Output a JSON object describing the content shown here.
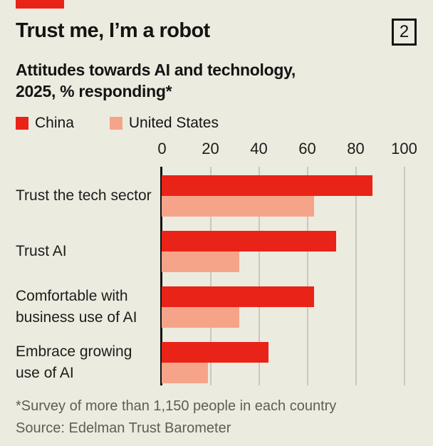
{
  "colors": {
    "background": "#ecebe0",
    "china_red": "#ea2318",
    "us_salmon": "#f6a489",
    "grid": "#c9c8bd",
    "axis": "#111110",
    "muted_text": "#5e5e56"
  },
  "header": {
    "brand_tab_color": "#ea2318",
    "title": "Trust me, I’m a robot",
    "index": "2",
    "subtitle": "Attitudes towards AI and technology, 2025, % responding*"
  },
  "legend": [
    {
      "label": "China",
      "color": "#ea2318"
    },
    {
      "label": "United States",
      "color": "#f6a489"
    }
  ],
  "chart_data": {
    "type": "bar",
    "orientation": "horizontal",
    "title": "Trust me, I’m a robot",
    "subtitle": "Attitudes towards AI and technology, 2025, % responding*",
    "categories": [
      "Trust the tech sector",
      "Trust AI",
      "Comfortable with business use of AI",
      "Embrace growing use of AI"
    ],
    "series": [
      {
        "name": "China",
        "color": "#ea2318",
        "values": [
          87,
          72,
          63,
          44
        ]
      },
      {
        "name": "United States",
        "color": "#f6a489",
        "values": [
          63,
          32,
          32,
          19
        ]
      }
    ],
    "xlim": [
      0,
      100
    ],
    "ticks": [
      0,
      20,
      40,
      60,
      80,
      100
    ],
    "grid": "vertical",
    "legend_position": "top-left"
  },
  "footer": {
    "note": "*Survey of more than 1,150 people in each country",
    "source": "Source: Edelman Trust Barometer"
  }
}
